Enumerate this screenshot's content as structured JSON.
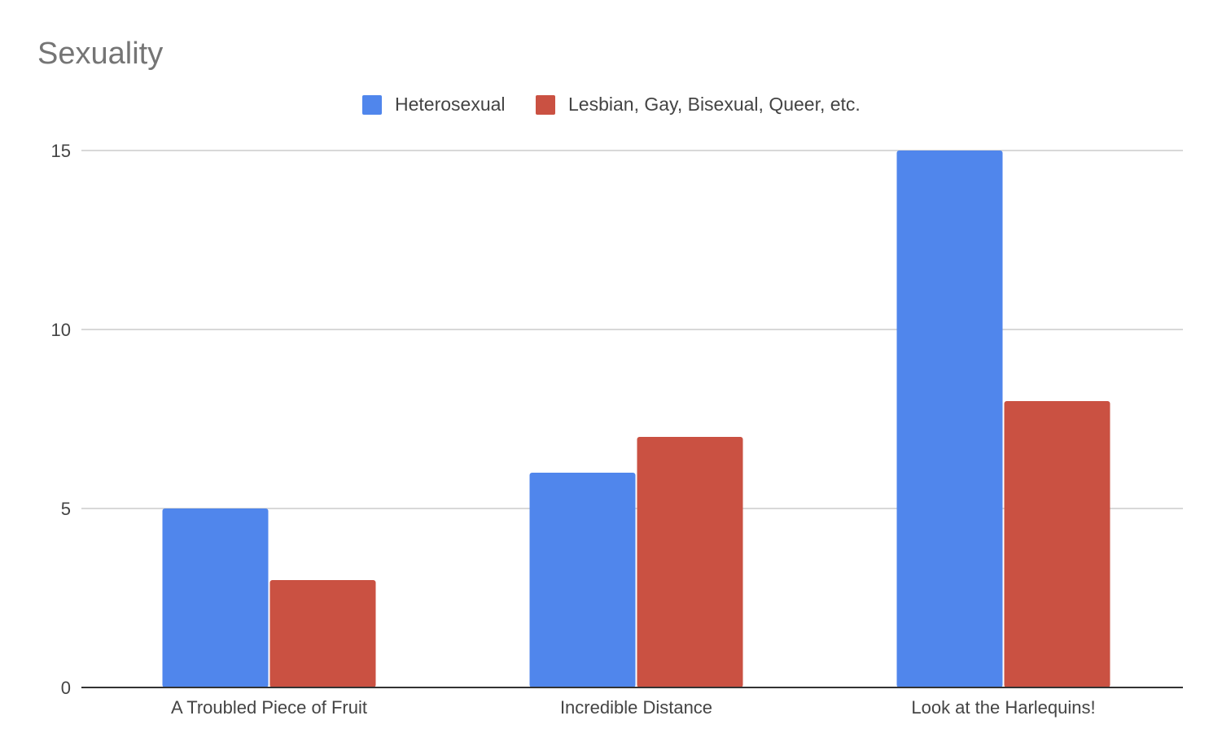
{
  "chart_data": {
    "type": "bar",
    "title": "Sexuality",
    "xlabel": "",
    "ylabel": "",
    "categories": [
      "A Troubled Piece of Fruit",
      "Incredible Distance",
      "Look at the Harlequins!"
    ],
    "series": [
      {
        "name": "Heterosexual",
        "values": [
          5,
          6,
          15
        ],
        "color": "#5086EC"
      },
      {
        "name": "Lesbian, Gay, Bisexual, Queer, etc.",
        "values": [
          3,
          7,
          8
        ],
        "color": "#CA5142"
      }
    ],
    "ylim": [
      0,
      15
    ],
    "yticks": [
      "0",
      "5",
      "10",
      "15"
    ],
    "grid": true,
    "legend_position": "top"
  }
}
